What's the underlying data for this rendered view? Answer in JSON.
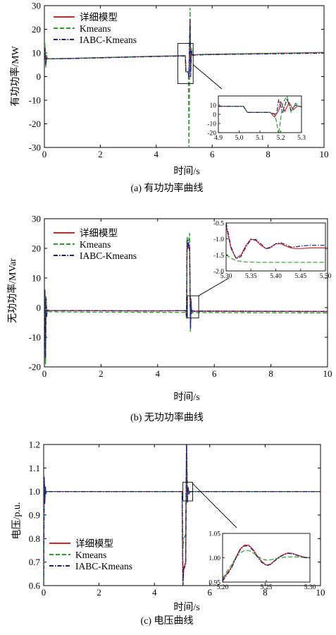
{
  "legend": {
    "series": [
      {
        "name": "详细模型",
        "color": "#d62728",
        "dash": "solid"
      },
      {
        "name": "Kmeans",
        "color": "#2ca02c",
        "dash": "dashed"
      },
      {
        "name": "IABC-Kmeans",
        "color": "#1f1f7a",
        "dash": "dashdot"
      }
    ]
  },
  "chart_data": [
    {
      "type": "line",
      "caption": "(a) 有功功率曲线",
      "xlabel": "时间/s",
      "ylabel": "有功功率/MW",
      "xlim": [
        0,
        10
      ],
      "ylim": [
        -30,
        30
      ],
      "xticks": [
        0,
        2,
        4,
        6,
        8,
        10
      ],
      "yticks": [
        -30,
        -20,
        -10,
        0,
        10,
        20,
        30
      ],
      "legend_position": "top-left",
      "series": [
        {
          "name": "详细模型",
          "x": [
            0,
            0.02,
            0.05,
            0.08,
            0.1,
            1,
            2,
            3,
            4,
            5,
            5.04,
            5.06,
            5.1,
            5.13,
            5.15,
            5.17,
            5.19,
            5.21,
            5.23,
            5.26,
            5.3,
            5.5,
            6,
            8,
            10
          ],
          "y": [
            7,
            13,
            5,
            9,
            7.5,
            7.7,
            8,
            8.3,
            8.6,
            8.8,
            8.8,
            2,
            2,
            2,
            2,
            -1,
            10,
            23,
            4,
            10,
            9,
            9.3,
            9.4,
            9.8,
            10.2
          ]
        },
        {
          "name": "Kmeans",
          "x": [
            0,
            0.02,
            0.05,
            0.08,
            0.1,
            1,
            2,
            3,
            4,
            5,
            5.04,
            5.06,
            5.1,
            5.13,
            5.15,
            5.17,
            5.19,
            5.21,
            5.23,
            5.26,
            5.3,
            5.5,
            6,
            8,
            10
          ],
          "y": [
            7,
            14,
            4,
            9,
            7.5,
            7.7,
            8,
            8.3,
            8.6,
            8.8,
            8.8,
            2,
            2,
            2,
            0,
            -30,
            -5,
            29,
            2,
            12,
            9,
            9.3,
            9.5,
            9.8,
            10.1
          ]
        },
        {
          "name": "IABC-Kmeans",
          "x": [
            0,
            0.02,
            0.05,
            0.08,
            0.1,
            1,
            2,
            3,
            4,
            5,
            5.04,
            5.06,
            5.1,
            5.13,
            5.15,
            5.17,
            5.19,
            5.21,
            5.23,
            5.26,
            5.3,
            5.5,
            6,
            8,
            10
          ],
          "y": [
            7,
            12,
            5,
            8,
            7.5,
            7.6,
            7.9,
            8.2,
            8.5,
            8.7,
            8.7,
            2,
            2,
            2,
            1,
            0,
            14,
            24,
            0,
            11,
            9,
            9.2,
            9.3,
            9.6,
            9.9
          ]
        }
      ],
      "inset": {
        "xlim": [
          4.9,
          5.3
        ],
        "ylim": [
          -20,
          20
        ],
        "xticks": [
          4.9,
          5.0,
          5.1,
          5.2,
          5.3
        ],
        "yticks": [
          -20,
          -10,
          0,
          10
        ],
        "series": [
          {
            "name": "详细模型",
            "x": [
              4.9,
              5.0,
              5.02,
              5.04,
              5.1,
              5.15,
              5.17,
              5.19,
              5.2,
              5.22,
              5.24,
              5.26,
              5.28,
              5.3
            ],
            "y": [
              8.8,
              8.8,
              8.8,
              2,
              2,
              2,
              -3,
              4,
              14,
              3,
              13,
              5,
              9,
              8
            ]
          },
          {
            "name": "Kmeans",
            "x": [
              4.9,
              5.0,
              5.02,
              5.04,
              5.1,
              5.15,
              5.17,
              5.18,
              5.19,
              5.21,
              5.23,
              5.25,
              5.27,
              5.3
            ],
            "y": [
              8.8,
              8.8,
              8.8,
              2,
              2,
              2,
              0,
              -8,
              -22,
              12,
              20,
              2,
              12,
              8
            ]
          },
          {
            "name": "IABC-Kmeans",
            "x": [
              4.9,
              5.0,
              5.02,
              5.04,
              5.1,
              5.15,
              5.16,
              5.18,
              5.19,
              5.21,
              5.23,
              5.25,
              5.27,
              5.3
            ],
            "y": [
              8.8,
              8.8,
              8.8,
              2,
              2,
              2,
              1,
              0,
              16,
              2,
              17,
              4,
              10,
              8
            ]
          }
        ]
      }
    },
    {
      "type": "line",
      "caption": "(b) 无功功率曲线",
      "xlabel": "时间/s",
      "ylabel": "无功功率/MVar",
      "xlim": [
        0,
        10
      ],
      "ylim": [
        -20,
        30
      ],
      "xticks": [
        0,
        2,
        4,
        6,
        8,
        10
      ],
      "yticks": [
        -20,
        -10,
        0,
        10,
        20,
        30
      ],
      "legend_position": "top-left",
      "series": [
        {
          "name": "详细模型",
          "x": [
            0,
            0.02,
            0.04,
            0.06,
            0.08,
            0.1,
            0.2,
            1,
            4,
            5,
            5.02,
            5.04,
            5.07,
            5.1,
            5.13,
            5.16,
            5.18,
            5.2,
            5.23,
            5.3,
            5.5,
            6,
            10
          ],
          "y": [
            -1,
            6,
            -18,
            3,
            -3,
            -0.8,
            -1,
            -1,
            -1.1,
            -1,
            -3,
            22,
            20,
            21,
            19,
            -6,
            3,
            -2,
            -1,
            -1.2,
            -1.2,
            -1.2,
            -1.3
          ]
        },
        {
          "name": "Kmeans",
          "x": [
            0,
            0.02,
            0.04,
            0.06,
            0.08,
            0.1,
            0.2,
            1,
            4,
            5,
            5.02,
            5.04,
            5.07,
            5.1,
            5.13,
            5.16,
            5.18,
            5.2,
            5.23,
            5.3,
            5.5,
            6,
            10
          ],
          "y": [
            -1,
            5,
            -19,
            4,
            -3,
            -1.2,
            -1.4,
            -1.5,
            -1.6,
            -1.6,
            -4,
            24,
            21,
            23,
            25,
            -8,
            1,
            -2,
            -1.7,
            -1.7,
            -1.7,
            -1.7,
            -1.8
          ]
        },
        {
          "name": "IABC-Kmeans",
          "x": [
            0,
            0.02,
            0.04,
            0.06,
            0.08,
            0.1,
            0.2,
            1,
            4,
            5,
            5.02,
            5.04,
            5.07,
            5.1,
            5.13,
            5.16,
            5.18,
            5.2,
            5.23,
            5.3,
            5.5,
            6,
            10
          ],
          "y": [
            -1,
            6,
            -17,
            3,
            -3,
            -0.9,
            -1,
            -1,
            -1.1,
            -1,
            -3,
            23,
            20,
            22,
            20,
            -7,
            2,
            -2,
            -1,
            -1.3,
            -1.2,
            -1.2,
            -1.3
          ]
        }
      ],
      "inset": {
        "xlim": [
          5.3,
          5.5
        ],
        "ylim": [
          -2.0,
          -0.5
        ],
        "xticks": [
          5.3,
          5.35,
          5.4,
          5.45,
          5.5
        ],
        "yticks": [
          -2.0,
          -1.5,
          -1.0,
          -0.5
        ],
        "series": [
          {
            "name": "详细模型",
            "x": [
              5.3,
              5.31,
              5.32,
              5.33,
              5.34,
              5.35,
              5.36,
              5.37,
              5.38,
              5.39,
              5.4,
              5.41,
              5.42,
              5.43,
              5.44,
              5.45,
              5.47,
              5.5
            ],
            "y": [
              -0.6,
              -1.3,
              -1.6,
              -1.5,
              -1.2,
              -1.0,
              -1.05,
              -1.2,
              -1.3,
              -1.25,
              -1.15,
              -1.15,
              -1.22,
              -1.28,
              -1.3,
              -1.3,
              -1.28,
              -1.28
            ]
          },
          {
            "name": "Kmeans",
            "x": [
              5.3,
              5.31,
              5.32,
              5.33,
              5.34,
              5.35,
              5.36,
              5.38,
              5.4,
              5.45,
              5.5
            ],
            "y": [
              -1.5,
              -1.6,
              -1.68,
              -1.7,
              -1.72,
              -1.72,
              -1.73,
              -1.73,
              -1.73,
              -1.73,
              -1.73
            ]
          },
          {
            "name": "IABC-Kmeans",
            "x": [
              5.3,
              5.31,
              5.32,
              5.33,
              5.34,
              5.35,
              5.36,
              5.37,
              5.38,
              5.39,
              5.4,
              5.41,
              5.42,
              5.43,
              5.44,
              5.45,
              5.47,
              5.5
            ],
            "y": [
              -0.5,
              -1.25,
              -1.62,
              -1.55,
              -1.25,
              -1.02,
              -1.02,
              -1.15,
              -1.3,
              -1.28,
              -1.15,
              -1.12,
              -1.18,
              -1.25,
              -1.25,
              -1.22,
              -1.2,
              -1.2
            ]
          }
        ]
      }
    },
    {
      "type": "line",
      "caption": "(c) 电压曲线",
      "xlabel": "时间/s",
      "ylabel": "电压/p.u.",
      "xlim": [
        0,
        10
      ],
      "ylim": [
        0.6,
        1.2
      ],
      "xticks": [
        0,
        2,
        4,
        6,
        8,
        10
      ],
      "yticks": [
        0.6,
        0.7,
        0.8,
        0.9,
        1.0,
        1.1,
        1.2
      ],
      "legend_position": "bottom-left",
      "series": [
        {
          "name": "详细模型",
          "x": [
            0,
            0.02,
            0.04,
            0.06,
            0.08,
            0.1,
            0.2,
            1,
            4,
            5,
            5.03,
            5.06,
            5.1,
            5.13,
            5.16,
            5.19,
            5.21,
            5.25,
            5.3,
            6,
            10
          ],
          "y": [
            0.62,
            1.06,
            0.96,
            1.02,
            0.99,
            1.0,
            1.0,
            1.0,
            1.0,
            1.0,
            0.62,
            0.68,
            0.69,
            0.7,
            1.21,
            0.96,
            1.02,
            0.99,
            1.0,
            1.0,
            1.0
          ]
        },
        {
          "name": "Kmeans",
          "x": [
            0,
            0.02,
            0.04,
            0.06,
            0.08,
            0.1,
            0.2,
            1,
            4,
            5,
            5.03,
            5.06,
            5.1,
            5.13,
            5.16,
            5.19,
            5.21,
            5.25,
            5.3,
            6,
            10
          ],
          "y": [
            0.62,
            1.05,
            0.97,
            1.02,
            0.99,
            1.0,
            1.0,
            1.0,
            1.0,
            1.0,
            0.76,
            0.8,
            0.81,
            0.82,
            1.2,
            0.97,
            1.01,
            1.0,
            1.0,
            1.0,
            1.0
          ]
        },
        {
          "name": "IABC-Kmeans",
          "x": [
            0,
            0.02,
            0.04,
            0.06,
            0.08,
            0.1,
            0.2,
            1,
            4,
            5,
            5.03,
            5.06,
            5.1,
            5.13,
            5.16,
            5.19,
            5.21,
            5.25,
            5.3,
            6,
            10
          ],
          "y": [
            0.6,
            1.06,
            0.95,
            1.02,
            0.99,
            1.0,
            1.0,
            1.0,
            1.0,
            1.0,
            0.6,
            0.67,
            0.68,
            0.69,
            1.22,
            0.95,
            1.02,
            0.99,
            1.0,
            1.0,
            1.0
          ]
        }
      ],
      "inset": {
        "xlim": [
          5.2,
          5.3
        ],
        "ylim": [
          0.95,
          1.05
        ],
        "xticks": [
          5.2,
          5.25,
          5.3
        ],
        "yticks": [
          0.95,
          1.0,
          1.05
        ],
        "series": [
          {
            "name": "详细模型",
            "x": [
              5.2,
              5.21,
              5.215,
              5.22,
              5.225,
              5.23,
              5.235,
              5.24,
              5.245,
              5.25,
              5.255,
              5.26,
              5.265,
              5.27,
              5.275,
              5.28,
              5.285,
              5.29,
              5.295,
              5.3
            ],
            "y": [
              0.955,
              0.98,
              1.0,
              1.018,
              1.026,
              1.026,
              1.017,
              1.003,
              0.992,
              0.985,
              0.987,
              0.995,
              1.002,
              1.007,
              1.01,
              1.009,
              1.006,
              1.003,
              1.001,
              1.0
            ]
          },
          {
            "name": "Kmeans",
            "x": [
              5.2,
              5.21,
              5.215,
              5.22,
              5.225,
              5.23,
              5.235,
              5.24,
              5.245,
              5.25,
              5.255,
              5.26,
              5.27,
              5.28,
              5.29,
              5.3
            ],
            "y": [
              0.958,
              0.985,
              1.0,
              1.01,
              1.015,
              1.015,
              1.01,
              1.003,
              0.998,
              0.995,
              0.996,
              0.998,
              1.001,
              1.002,
              1.001,
              1.0
            ]
          },
          {
            "name": "IABC-Kmeans",
            "x": [
              5.2,
              5.21,
              5.215,
              5.22,
              5.225,
              5.23,
              5.235,
              5.24,
              5.245,
              5.25,
              5.255,
              5.26,
              5.265,
              5.27,
              5.275,
              5.28,
              5.285,
              5.29,
              5.295,
              5.3
            ],
            "y": [
              0.952,
              0.978,
              0.998,
              1.016,
              1.024,
              1.024,
              1.015,
              1.001,
              0.99,
              0.984,
              0.986,
              0.994,
              1.001,
              1.006,
              1.009,
              1.008,
              1.005,
              1.002,
              1.0,
              1.0
            ]
          }
        ]
      }
    }
  ]
}
